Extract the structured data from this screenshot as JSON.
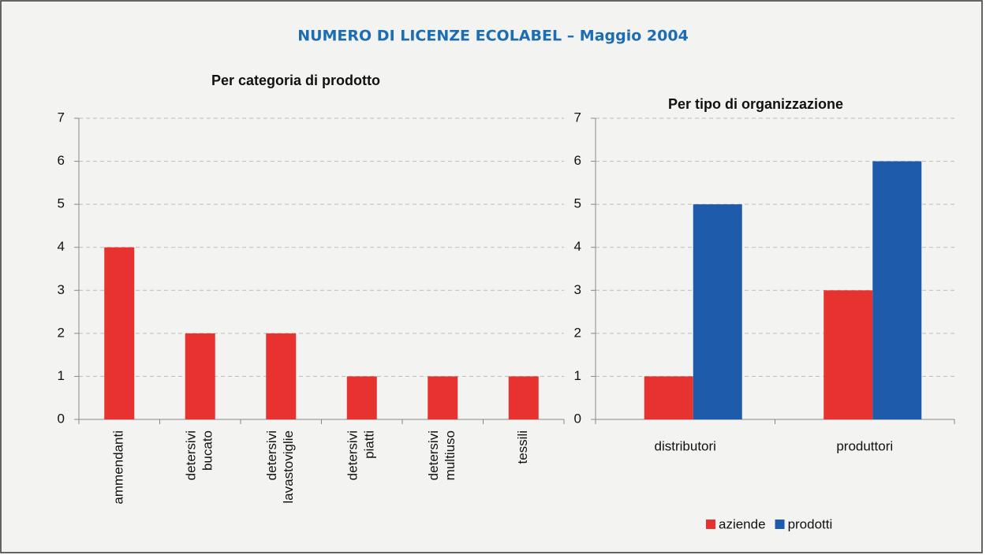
{
  "title": "NUMERO DI LICENZE ECOLABEL – Maggio 2004",
  "chart_data": [
    {
      "type": "bar",
      "title": "Per categoria di prodotto",
      "categories": [
        [
          "ammendanti"
        ],
        [
          "detersivi",
          "bucato"
        ],
        [
          "detersivi",
          "lavastoviglie"
        ],
        [
          "detersivi",
          "piatti"
        ],
        [
          "detersivi",
          "multiuso"
        ],
        [
          "tessili"
        ]
      ],
      "values": [
        4,
        2,
        2,
        1,
        1,
        1
      ],
      "color": "#e8322f",
      "ylim": [
        0,
        7
      ],
      "yticks": [
        0,
        1,
        2,
        3,
        4,
        5,
        6,
        7
      ],
      "grid": true
    },
    {
      "type": "grouped_bar",
      "title": "Per tipo di organizzazione",
      "categories": [
        "distributori",
        "produttori"
      ],
      "series": [
        {
          "name": "aziende",
          "color": "#e8322f",
          "values": [
            1,
            3
          ]
        },
        {
          "name": "prodotti",
          "color": "#1f5bab",
          "values": [
            5,
            6
          ]
        }
      ],
      "ylim": [
        0,
        7
      ],
      "yticks": [
        0,
        1,
        2,
        3,
        4,
        5,
        6,
        7
      ],
      "grid": true,
      "legend": "bottom"
    }
  ]
}
